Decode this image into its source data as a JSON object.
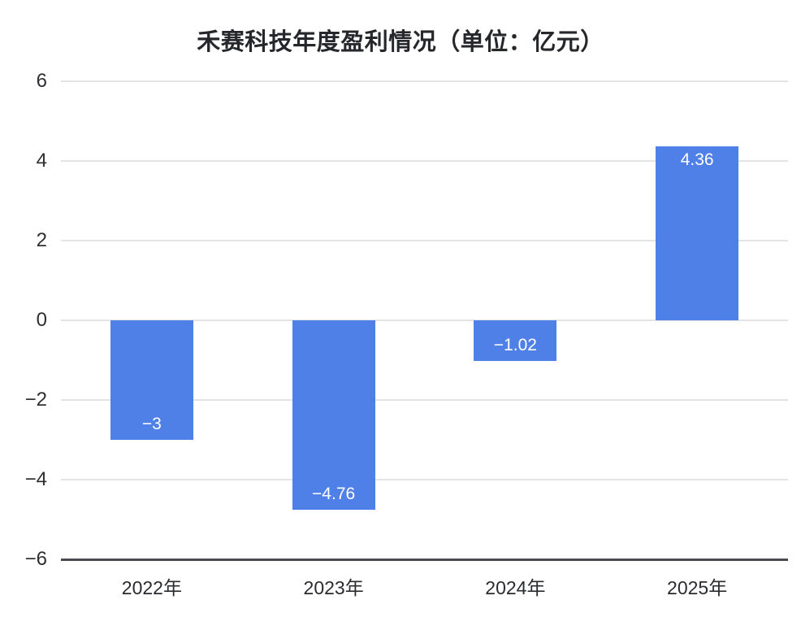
{
  "title": "禾赛科技年度盈利情况（单位：亿元）",
  "chart_data": {
    "type": "bar",
    "title": "禾赛科技年度盈利情况（单位：亿元）",
    "categories": [
      "2022年",
      "2023年",
      "2024年",
      "2025年"
    ],
    "values": [
      -3,
      -4.76,
      -1.02,
      4.36
    ],
    "value_labels": [
      "−3",
      "−4.76",
      "−1.02",
      "4.36"
    ],
    "xlabel": "",
    "ylabel": "",
    "ylim": [
      -6,
      6
    ],
    "yticks": [
      6,
      4,
      2,
      0,
      -2,
      -4,
      -6
    ],
    "ytick_labels": [
      "6",
      "4",
      "2",
      "0",
      "−2",
      "−4",
      "−6"
    ],
    "grid": true,
    "legend": "none",
    "bar_color": "#4f80e8",
    "value_label_color": "#ffffff",
    "gridline_color": "#e4e4e6",
    "axis_line_color": "#4a4a50"
  }
}
